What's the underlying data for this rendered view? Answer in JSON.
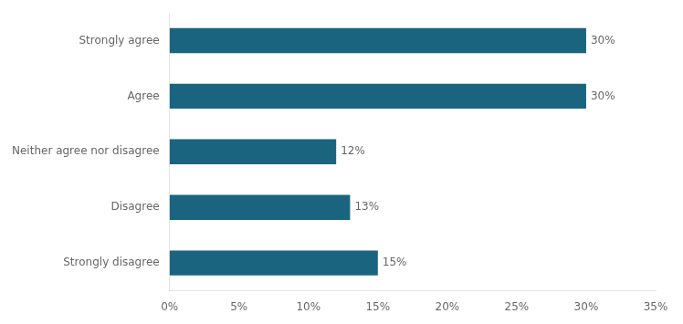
{
  "chart_data": {
    "type": "bar",
    "orientation": "horizontal",
    "categories": [
      "Strongly agree",
      "Agree",
      "Neither agree nor disagree",
      "Disagree",
      "Strongly disagree"
    ],
    "values": [
      30,
      30,
      12,
      13,
      15
    ],
    "value_labels": [
      "30%",
      "30%",
      "12%",
      "13%",
      "15%"
    ],
    "data_labels": true,
    "color": "#1a6480",
    "xlim": [
      0,
      35
    ],
    "xticks": [
      {
        "value": 0,
        "label": "0%"
      },
      {
        "value": 5,
        "label": "5%"
      },
      {
        "value": 10,
        "label": "10%"
      },
      {
        "value": 15,
        "label": "15%"
      },
      {
        "value": 20,
        "label": "20%"
      },
      {
        "value": 25,
        "label": "25%"
      },
      {
        "value": 30,
        "label": "30%"
      },
      {
        "value": 35,
        "label": "35%"
      }
    ],
    "grid": false
  }
}
